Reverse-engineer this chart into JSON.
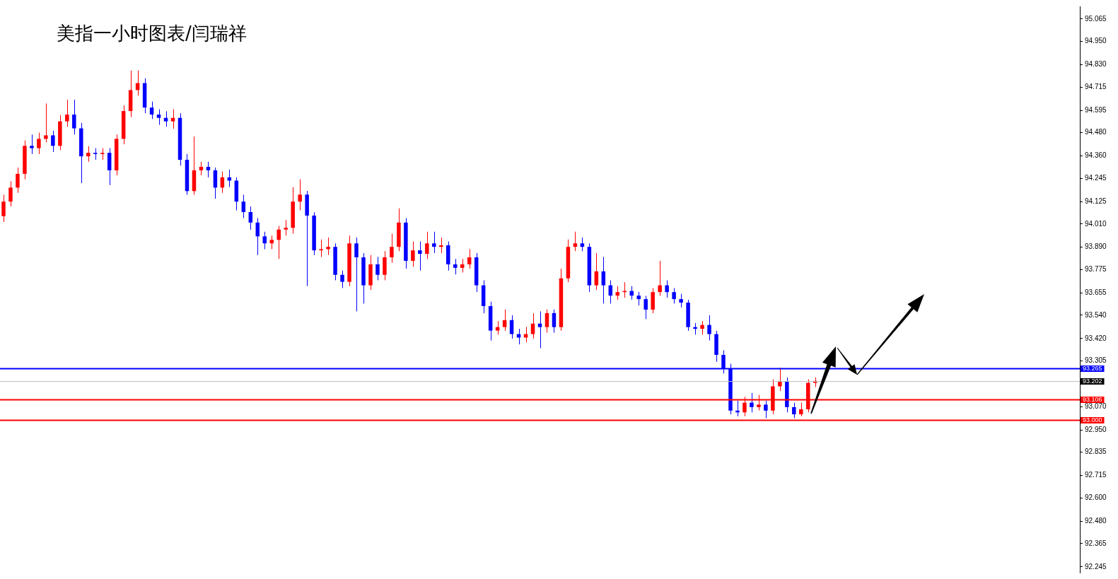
{
  "chart_data": {
    "type": "candlestick",
    "title": "美指一小时图表/闫瑞祥",
    "categories": [
      null,
      null,
      null,
      null,
      null,
      null,
      null,
      null,
      null,
      null,
      null,
      null,
      null,
      null,
      null,
      null,
      null,
      null,
      null,
      null,
      null,
      null,
      null,
      null,
      null,
      null,
      null,
      null,
      null,
      null,
      null,
      null,
      null,
      null,
      null,
      null,
      null,
      null,
      null,
      null,
      null,
      null,
      null,
      null,
      null,
      null,
      null,
      null,
      null,
      null,
      null,
      null,
      null,
      null,
      null,
      null,
      null,
      null,
      null,
      null,
      null,
      null,
      null,
      null,
      null,
      null,
      null,
      null,
      null,
      null,
      null,
      null,
      null,
      null,
      null,
      null,
      null,
      null,
      null,
      null,
      null,
      null,
      null,
      null,
      null,
      null,
      null,
      null,
      null,
      null,
      null,
      null,
      null,
      null,
      null,
      null,
      null,
      null,
      null,
      null,
      null,
      null,
      null,
      null,
      null,
      null,
      null,
      null,
      null,
      null,
      null,
      null,
      null,
      null,
      null,
      null,
      null,
      null,
      null,
      null,
      null,
      null,
      null,
      null,
      null,
      null,
      null,
      null,
      null,
      null,
      null,
      null,
      null,
      null,
      null,
      null,
      null,
      null,
      null,
      null,
      null,
      null,
      null,
      null,
      null,
      null,
      null,
      null,
      null,
      null,
      null,
      null,
      null
    ],
    "ohlc": [
      [
        94.05,
        94.16,
        94.02,
        94.125
      ],
      [
        94.125,
        94.23,
        94.1,
        94.197
      ],
      [
        94.197,
        94.3,
        94.17,
        94.268
      ],
      [
        94.268,
        94.44,
        94.24,
        94.412
      ],
      [
        94.412,
        94.47,
        94.37,
        94.4
      ],
      [
        94.4,
        94.48,
        94.37,
        94.448
      ],
      [
        94.448,
        94.63,
        94.43,
        94.466
      ],
      [
        94.466,
        94.49,
        94.38,
        94.412
      ],
      [
        94.412,
        94.57,
        94.39,
        94.538
      ],
      [
        94.538,
        94.65,
        94.51,
        94.573
      ],
      [
        94.573,
        94.65,
        94.47,
        94.502
      ],
      [
        94.502,
        94.53,
        94.22,
        94.358
      ],
      [
        94.358,
        94.41,
        94.33,
        94.376
      ],
      [
        94.376,
        94.4,
        94.34,
        94.37
      ],
      [
        94.37,
        94.4,
        94.34,
        94.376
      ],
      [
        94.376,
        94.4,
        94.21,
        94.286
      ],
      [
        94.286,
        94.47,
        94.26,
        94.448
      ],
      [
        94.448,
        94.62,
        94.42,
        94.591
      ],
      [
        94.591,
        94.8,
        94.56,
        94.699
      ],
      [
        94.699,
        94.8,
        94.67,
        94.735
      ],
      [
        94.735,
        94.76,
        94.58,
        94.609
      ],
      [
        94.609,
        94.64,
        94.55,
        94.573
      ],
      [
        94.573,
        94.6,
        94.52,
        94.556
      ],
      [
        94.556,
        94.59,
        94.51,
        94.538
      ],
      [
        94.538,
        94.6,
        94.5,
        94.556
      ],
      [
        94.556,
        94.58,
        94.31,
        94.34
      ],
      [
        94.34,
        94.37,
        94.16,
        94.179
      ],
      [
        94.179,
        94.46,
        94.16,
        94.286
      ],
      [
        94.286,
        94.33,
        94.26,
        94.304
      ],
      [
        94.304,
        94.33,
        94.25,
        94.286
      ],
      [
        94.286,
        94.3,
        94.14,
        94.197
      ],
      [
        94.197,
        94.28,
        94.17,
        94.25
      ],
      [
        94.25,
        94.29,
        94.2,
        94.233
      ],
      [
        94.233,
        94.25,
        94.08,
        94.125
      ],
      [
        94.125,
        94.16,
        94.04,
        94.071
      ],
      [
        94.071,
        94.1,
        93.98,
        94.017
      ],
      [
        94.017,
        94.04,
        93.85,
        93.946
      ],
      [
        93.946,
        93.97,
        93.88,
        93.91
      ],
      [
        93.91,
        93.95,
        93.88,
        93.928
      ],
      [
        93.928,
        94,
        93.83,
        93.981
      ],
      [
        93.981,
        94.03,
        93.95,
        93.99
      ],
      [
        93.99,
        94.2,
        93.96,
        94.125
      ],
      [
        94.125,
        94.24,
        94.08,
        94.161
      ],
      [
        94.161,
        94.18,
        93.69,
        94.053
      ],
      [
        94.053,
        94.07,
        93.85,
        93.874
      ],
      [
        93.874,
        93.93,
        93.84,
        93.88
      ],
      [
        93.88,
        93.94,
        93.85,
        93.892
      ],
      [
        93.892,
        93.91,
        93.72,
        93.748
      ],
      [
        93.748,
        93.77,
        93.68,
        93.712
      ],
      [
        93.712,
        93.95,
        93.69,
        93.91
      ],
      [
        93.91,
        93.94,
        93.56,
        93.838
      ],
      [
        93.838,
        93.86,
        93.6,
        93.694
      ],
      [
        93.694,
        93.85,
        93.67,
        93.802
      ],
      [
        93.802,
        93.84,
        93.72,
        93.748
      ],
      [
        93.748,
        93.87,
        93.72,
        93.838
      ],
      [
        93.838,
        93.96,
        93.81,
        93.892
      ],
      [
        93.892,
        94.09,
        93.87,
        94.017
      ],
      [
        94.017,
        94.04,
        93.78,
        93.82
      ],
      [
        93.82,
        93.92,
        93.79,
        93.874
      ],
      [
        93.874,
        93.92,
        93.77,
        93.856
      ],
      [
        93.856,
        93.97,
        93.83,
        93.91
      ],
      [
        93.91,
        93.97,
        93.86,
        93.892
      ],
      [
        93.892,
        93.94,
        93.86,
        93.9
      ],
      [
        93.9,
        93.92,
        93.77,
        93.802
      ],
      [
        93.802,
        93.83,
        93.75,
        93.784
      ],
      [
        93.784,
        93.83,
        93.76,
        93.802
      ],
      [
        93.802,
        93.88,
        93.78,
        93.838
      ],
      [
        93.838,
        93.86,
        93.66,
        93.694
      ],
      [
        93.694,
        93.72,
        93.55,
        93.587
      ],
      [
        93.587,
        93.61,
        93.41,
        93.461
      ],
      [
        93.461,
        93.51,
        93.44,
        93.479
      ],
      [
        93.479,
        93.57,
        93.46,
        93.515
      ],
      [
        93.515,
        93.54,
        93.42,
        93.443
      ],
      [
        93.443,
        93.47,
        93.39,
        93.425
      ],
      [
        93.425,
        93.48,
        93.4,
        93.443
      ],
      [
        93.443,
        93.55,
        93.42,
        93.497
      ],
      [
        93.497,
        93.56,
        93.37,
        93.479
      ],
      [
        93.479,
        93.57,
        93.45,
        93.551
      ],
      [
        93.551,
        93.57,
        93.45,
        93.479
      ],
      [
        93.479,
        93.78,
        93.46,
        93.73
      ],
      [
        93.73,
        93.93,
        93.71,
        93.892
      ],
      [
        93.892,
        93.97,
        93.87,
        93.91
      ],
      [
        93.91,
        93.94,
        93.87,
        93.892
      ],
      [
        93.892,
        93.91,
        93.66,
        93.694
      ],
      [
        93.694,
        93.86,
        93.67,
        93.766
      ],
      [
        93.766,
        93.84,
        93.6,
        93.694
      ],
      [
        93.694,
        93.72,
        93.6,
        93.641
      ],
      [
        93.641,
        93.69,
        93.62,
        93.659
      ],
      [
        93.659,
        93.71,
        93.63,
        93.665
      ],
      [
        93.665,
        93.69,
        93.62,
        93.641
      ],
      [
        93.641,
        93.66,
        93.59,
        93.623
      ],
      [
        93.623,
        93.64,
        93.52,
        93.569
      ],
      [
        93.569,
        93.68,
        93.55,
        93.659
      ],
      [
        93.659,
        93.82,
        93.64,
        93.694
      ],
      [
        93.694,
        93.72,
        93.63,
        93.659
      ],
      [
        93.659,
        93.68,
        93.6,
        93.623
      ],
      [
        93.623,
        93.65,
        93.58,
        93.605
      ],
      [
        93.605,
        93.62,
        93.46,
        93.479
      ],
      [
        93.479,
        93.5,
        93.44,
        93.47
      ],
      [
        93.47,
        93.51,
        93.44,
        93.49
      ],
      [
        93.49,
        93.54,
        93.41,
        93.443
      ],
      [
        93.443,
        93.46,
        93.3,
        93.336
      ],
      [
        93.336,
        93.36,
        93.24,
        93.264
      ],
      [
        93.264,
        93.29,
        93.03,
        93.049
      ],
      [
        93.049,
        93.1,
        93.02,
        93.04
      ],
      [
        93.04,
        93.12,
        93.02,
        93.09
      ],
      [
        93.09,
        93.14,
        93.04,
        93.067
      ],
      [
        93.067,
        93.13,
        93.05,
        93.08
      ],
      [
        93.08,
        93.1,
        93.01,
        93.049
      ],
      [
        93.049,
        93.21,
        93.03,
        93.174
      ],
      [
        93.174,
        93.27,
        93.15,
        93.2
      ],
      [
        93.2,
        93.22,
        93.04,
        93.067
      ],
      [
        93.067,
        93.09,
        93.01,
        93.03
      ],
      [
        93.03,
        93.09,
        93.02,
        93.056
      ],
      [
        93.056,
        93.21,
        93.04,
        93.192
      ],
      [
        93.192,
        93.22,
        93.17,
        93.202
      ],
      null,
      null,
      null,
      null,
      null,
      null,
      null,
      null,
      null,
      null,
      null,
      null,
      null,
      null,
      null,
      null,
      null,
      null,
      null,
      null,
      null,
      null,
      null,
      null,
      null,
      null,
      null,
      null,
      null,
      null,
      null,
      null,
      null,
      null,
      null,
      null,
      null
    ],
    "colors": [
      "#ff0000",
      "#ff0000",
      "#ff0000",
      "#ff0000",
      "#0000ff",
      "#ff0000",
      "#ff0000",
      "#0000ff",
      "#ff0000",
      "#ff0000",
      "#0000ff",
      "#0000ff",
      "#ff0000",
      "#0000ff",
      "#ff0000",
      "#0000ff",
      "#ff0000",
      "#ff0000",
      "#ff0000",
      "#ff0000",
      "#0000ff",
      "#0000ff",
      "#0000ff",
      "#0000ff",
      "#ff0000",
      "#0000ff",
      "#0000ff",
      "#ff0000",
      "#ff0000",
      "#0000ff",
      "#0000ff",
      "#ff0000",
      "#0000ff",
      "#0000ff",
      "#0000ff",
      "#0000ff",
      "#0000ff",
      "#0000ff",
      "#ff0000",
      "#ff0000",
      "#ff0000",
      "#ff0000",
      "#ff0000",
      "#0000ff",
      "#0000ff",
      "#ff0000",
      "#ff0000",
      "#0000ff",
      "#0000ff",
      "#ff0000",
      "#0000ff",
      "#0000ff",
      "#ff0000",
      "#0000ff",
      "#ff0000",
      "#ff0000",
      "#ff0000",
      "#0000ff",
      "#ff0000",
      "#0000ff",
      "#ff0000",
      "#0000ff",
      "#ff0000",
      "#0000ff",
      "#0000ff",
      "#ff0000",
      "#ff0000",
      "#0000ff",
      "#0000ff",
      "#0000ff",
      "#ff0000",
      "#ff0000",
      "#0000ff",
      "#0000ff",
      "#ff0000",
      "#ff0000",
      "#0000ff",
      "#ff0000",
      "#0000ff",
      "#ff0000",
      "#ff0000",
      "#ff0000",
      "#0000ff",
      "#0000ff",
      "#ff0000",
      "#0000ff",
      "#0000ff",
      "#ff0000",
      "#ff0000",
      "#0000ff",
      "#0000ff",
      "#0000ff",
      "#ff0000",
      "#ff0000",
      "#0000ff",
      "#0000ff",
      "#0000ff",
      "#0000ff",
      "#0000ff",
      "#ff0000",
      "#0000ff",
      "#0000ff",
      "#0000ff",
      "#0000ff",
      "#0000ff",
      "#ff0000",
      "#0000ff",
      "#ff0000",
      "#0000ff",
      "#ff0000",
      "#ff0000",
      "#0000ff",
      "#0000ff",
      "#ff0000",
      "#ff0000",
      "#ff0000",
      null,
      null,
      null,
      null,
      null,
      null,
      null,
      null,
      null,
      null,
      null,
      null,
      null,
      null,
      null,
      null,
      null,
      null,
      null,
      null,
      null,
      null,
      null,
      null,
      null,
      null,
      null,
      null,
      null,
      null,
      null,
      null,
      null,
      null,
      null,
      null,
      null
    ],
    "ylim": [
      92.215,
      95.13
    ],
    "yticks": [
      92.245,
      92.365,
      {
        "value": 92.48,
        "label": "92.480"
      },
      {
        "value": 92.6,
        "label": "92.600"
      },
      92.715,
      92.835,
      {
        "value": 92.95,
        "label": "92.950"
      },
      {
        "value": 93.07,
        "label": "93.070"
      },
      93.305,
      {
        "value": 93.42,
        "label": "93.420"
      },
      {
        "value": 93.54,
        "label": "93.540"
      },
      93.655,
      93.775,
      {
        "value": 93.89,
        "label": "93.890"
      },
      {
        "value": 94.01,
        "label": "94.010"
      },
      94.125,
      94.245,
      {
        "value": 94.36,
        "label": "94.360"
      },
      {
        "value": 94.48,
        "label": "94.480"
      },
      94.595,
      94.715,
      {
        "value": 94.83,
        "label": "94.830"
      },
      {
        "value": 94.95,
        "label": "94.950"
      },
      95.065
    ],
    "ref_lines": [
      {
        "axis": "y",
        "value": 93.265,
        "label": "93.265",
        "color": "#0000ff"
      },
      {
        "axis": "y",
        "value": 93.202,
        "label": "93.202",
        "color": "#c0c0c0"
      },
      {
        "axis": "y",
        "value": 93.106,
        "label": "93.106",
        "color": "#ff0000"
      },
      {
        "axis": "y",
        "value": 93.0,
        "label": "93.000",
        "color": "#ff0000"
      }
    ],
    "tick_labels": "y"
  }
}
